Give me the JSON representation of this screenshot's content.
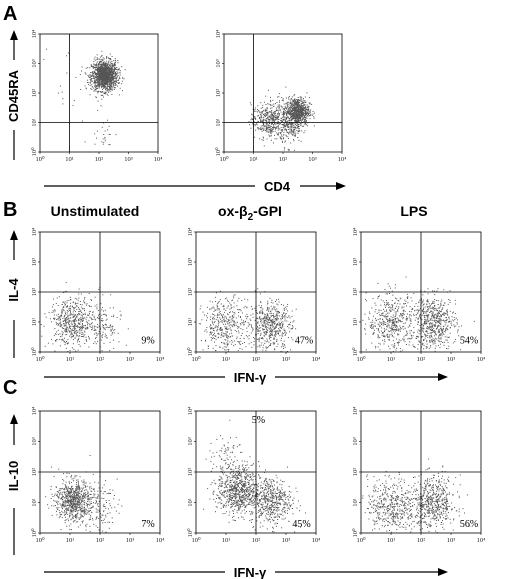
{
  "panels": {
    "A": {
      "letter": "A",
      "x_label": "CD4",
      "y_label": "CD45RA"
    },
    "B": {
      "letter": "B",
      "x_label": "IFN-γ",
      "y_label": "IL-4"
    },
    "C": {
      "letter": "C",
      "x_label": "IFN-γ",
      "y_label": "IL-10"
    }
  },
  "columns": {
    "col1": "Unstimulated",
    "col2_main": "ox-β",
    "col2_sub": "2",
    "col2_tail": "-GPI",
    "col3": "LPS"
  },
  "ticks": {
    "x": [
      "10⁰",
      "10¹",
      "10²",
      "10³",
      "10⁴"
    ],
    "y": [
      "10⁰",
      "10¹",
      "10²",
      "10³",
      "10⁴"
    ]
  },
  "chart_data": [
    {
      "id": "A1",
      "type": "scatter",
      "title": "",
      "xlabel": "CD4",
      "ylabel": "CD45RA",
      "scale": "log",
      "xlim": [
        1,
        10000
      ],
      "ylim": [
        1,
        10000
      ],
      "quadrant_labels": [],
      "populations": [
        {
          "x": 150,
          "y": 400,
          "spread": 0.22,
          "n": 1400
        },
        {
          "x": 150,
          "y": 5,
          "spread": 0.25,
          "n": 25
        },
        {
          "x": 10,
          "y": 300,
          "spread": 0.5,
          "n": 20
        }
      ]
    },
    {
      "id": "A2",
      "type": "scatter",
      "title": "",
      "xlabel": "CD4",
      "ylabel": "CD45RA",
      "scale": "log",
      "xlim": [
        1,
        10000
      ],
      "ylim": [
        1,
        10000
      ],
      "quadrant_labels": [],
      "populations": [
        {
          "x": 300,
          "y": 25,
          "spread": 0.2,
          "n": 700
        },
        {
          "x": 25,
          "y": 12,
          "spread": 0.25,
          "n": 300
        },
        {
          "x": 100,
          "y": 14,
          "spread": 0.3,
          "n": 300
        },
        {
          "x": 200,
          "y": 5,
          "spread": 0.2,
          "n": 80
        }
      ]
    },
    {
      "id": "B1",
      "type": "scatter",
      "title": "Unstimulated",
      "xlabel": "IFN-γ",
      "ylabel": "IL-4",
      "scale": "log",
      "xlim": [
        1,
        10000
      ],
      "ylim": [
        1,
        10000
      ],
      "quadrant_labels": [
        "9%"
      ],
      "populations": [
        {
          "x": 10,
          "y": 10,
          "spread": 0.35,
          "n": 450
        },
        {
          "x": 80,
          "y": 8,
          "spread": 0.4,
          "n": 200
        }
      ]
    },
    {
      "id": "B2",
      "type": "scatter",
      "title": "ox-β2-GPI",
      "xlabel": "IFN-γ",
      "ylabel": "IL-4",
      "scale": "log",
      "xlim": [
        1,
        10000
      ],
      "ylim": [
        1,
        10000
      ],
      "quadrant_labels": [
        "47%"
      ],
      "populations": [
        {
          "x": 10,
          "y": 8,
          "spread": 0.4,
          "n": 400
        },
        {
          "x": 300,
          "y": 8,
          "spread": 0.35,
          "n": 500
        }
      ]
    },
    {
      "id": "B3",
      "type": "scatter",
      "title": "LPS",
      "xlabel": "IFN-γ",
      "ylabel": "IL-4",
      "scale": "log",
      "xlim": [
        1,
        10000
      ],
      "ylim": [
        1,
        10000
      ],
      "quadrant_labels": [
        "54%"
      ],
      "populations": [
        {
          "x": 10,
          "y": 10,
          "spread": 0.4,
          "n": 450
        },
        {
          "x": 250,
          "y": 10,
          "spread": 0.38,
          "n": 600
        }
      ]
    },
    {
      "id": "C1",
      "type": "scatter",
      "title": "",
      "xlabel": "IFN-γ",
      "ylabel": "IL-10",
      "scale": "log",
      "xlim": [
        1,
        10000
      ],
      "ylim": [
        1,
        10000
      ],
      "quadrant_labels": [
        "7%"
      ],
      "populations": [
        {
          "x": 12,
          "y": 12,
          "spread": 0.3,
          "n": 700
        },
        {
          "x": 70,
          "y": 8,
          "spread": 0.35,
          "n": 150
        }
      ]
    },
    {
      "id": "C2",
      "type": "scatter",
      "title": "",
      "xlabel": "IFN-γ",
      "ylabel": "IL-10",
      "scale": "log",
      "xlim": [
        1,
        10000
      ],
      "ylim": [
        1,
        10000
      ],
      "quadrant_labels": [
        "5%",
        "45%"
      ],
      "populations": [
        {
          "x": 25,
          "y": 25,
          "spread": 0.35,
          "n": 700
        },
        {
          "x": 300,
          "y": 12,
          "spread": 0.35,
          "n": 500
        },
        {
          "x": 10,
          "y": 300,
          "spread": 0.3,
          "n": 80
        }
      ]
    },
    {
      "id": "C3",
      "type": "scatter",
      "title": "",
      "xlabel": "IFN-γ",
      "ylabel": "IL-10",
      "scale": "log",
      "xlim": [
        1,
        10000
      ],
      "ylim": [
        1,
        10000
      ],
      "quadrant_labels": [
        "56%"
      ],
      "populations": [
        {
          "x": 10,
          "y": 8,
          "spread": 0.4,
          "n": 450
        },
        {
          "x": 250,
          "y": 10,
          "spread": 0.38,
          "n": 550
        }
      ]
    }
  ]
}
